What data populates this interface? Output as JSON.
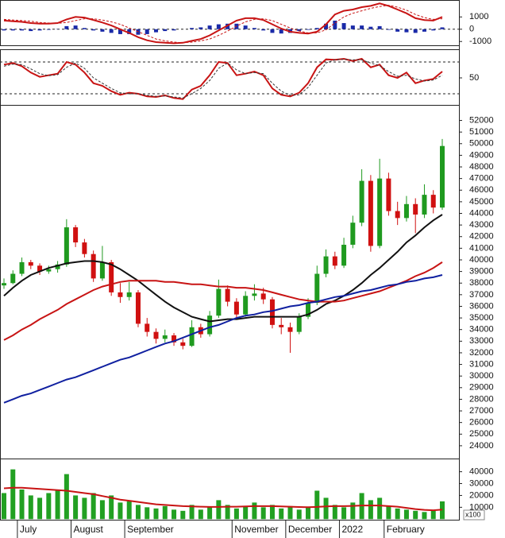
{
  "chart_data": [
    {
      "type": "macd",
      "ylim": [
        -1310,
        2250
      ],
      "yticks": [
        -1000,
        0,
        1000
      ],
      "levels": [
        0
      ],
      "hist_color": "#1a2aa8",
      "hist": [
        -100,
        -100,
        -100,
        -150,
        -100,
        -50,
        20,
        250,
        300,
        100,
        -100,
        -200,
        -300,
        -400,
        -400,
        -450,
        -400,
        -250,
        -150,
        -100,
        0,
        100,
        150,
        300,
        400,
        450,
        450,
        300,
        100,
        -100,
        -300,
        -350,
        -300,
        -150,
        -50,
        100,
        450,
        700,
        500,
        300,
        300,
        200,
        250,
        -50,
        -200,
        -250,
        -300,
        -200,
        -100,
        150
      ],
      "series": [
        {
          "color": "#c81414",
          "dash": false,
          "values": [
            700,
            650,
            600,
            500,
            450,
            450,
            500,
            800,
            1000,
            950,
            750,
            550,
            300,
            0,
            -300,
            -650,
            -900,
            -1050,
            -1100,
            -1150,
            -1100,
            -950,
            -800,
            -500,
            -100,
            300,
            700,
            900,
            900,
            750,
            400,
            50,
            -200,
            -300,
            -350,
            -200,
            400,
            1200,
            1500,
            1600,
            1800,
            1900,
            2100,
            1900,
            1600,
            1300,
            900,
            750,
            700,
            1000
          ]
        },
        {
          "color": "#c81414",
          "dash": true,
          "values": [
            800,
            750,
            700,
            650,
            550,
            500,
            480,
            550,
            700,
            850,
            850,
            750,
            600,
            400,
            100,
            -200,
            -500,
            -800,
            -950,
            -1050,
            -1100,
            -1050,
            -950,
            -800,
            -500,
            -150,
            250,
            600,
            800,
            850,
            700,
            400,
            100,
            -150,
            -300,
            -300,
            -50,
            500,
            1000,
            1300,
            1500,
            1700,
            1850,
            1950,
            1800,
            1550,
            1200,
            950,
            800,
            850
          ]
        }
      ]
    },
    {
      "type": "line",
      "ylim": [
        -1,
        101
      ],
      "yticks": [
        50
      ],
      "levels": [
        20,
        80
      ],
      "series": [
        {
          "color": "#c81414",
          "dash": false,
          "values": [
            75,
            78,
            72,
            60,
            52,
            55,
            58,
            80,
            75,
            60,
            40,
            35,
            25,
            18,
            22,
            20,
            15,
            14,
            17,
            12,
            10,
            28,
            35,
            55,
            80,
            78,
            55,
            58,
            62,
            55,
            30,
            18,
            15,
            22,
            40,
            70,
            85,
            84,
            86,
            82,
            86,
            70,
            75,
            55,
            50,
            60,
            40,
            45,
            48,
            62
          ]
        },
        {
          "color": "#333333",
          "dash": true,
          "values": [
            72,
            76,
            75,
            67,
            58,
            54,
            56,
            70,
            78,
            68,
            50,
            40,
            30,
            22,
            20,
            20,
            17,
            15,
            16,
            14,
            12,
            20,
            30,
            45,
            68,
            78,
            65,
            58,
            60,
            58,
            40,
            25,
            17,
            18,
            32,
            55,
            78,
            84,
            85,
            84,
            84,
            78,
            73,
            62,
            53,
            55,
            48,
            44,
            46,
            55
          ]
        }
      ]
    },
    {
      "type": "candlestick",
      "ylim": [
        22900,
        53200
      ],
      "yticks": [
        24000,
        25000,
        26000,
        27000,
        28000,
        29000,
        30000,
        31000,
        32000,
        33000,
        34000,
        35000,
        36000,
        37000,
        38000,
        39000,
        40000,
        41000,
        42000,
        43000,
        44000,
        45000,
        46000,
        47000,
        48000,
        49000,
        50000,
        51000,
        52000
      ],
      "up_color": "#1f9a1f",
      "down_color": "#d01010",
      "open": [
        37800,
        38000,
        38800,
        39800,
        39500,
        39000,
        39200,
        39600,
        42800,
        41500,
        40500,
        38400,
        39800,
        37200,
        36800,
        37200,
        34500,
        33800,
        33200,
        33500,
        32900,
        32600,
        34200,
        33600,
        35200,
        37500,
        36400,
        35300,
        36900,
        37100,
        36600,
        34400,
        34200,
        33800,
        35100,
        36300,
        38800,
        40300,
        39500,
        41300,
        43200,
        46800,
        41200,
        47000,
        44200,
        43600,
        44800,
        43900,
        45600,
        44500
      ],
      "high": [
        38400,
        39100,
        40200,
        40000,
        39700,
        39500,
        39900,
        43500,
        43000,
        41800,
        40800,
        41200,
        40000,
        38000,
        38100,
        37400,
        35000,
        34100,
        34000,
        33700,
        33200,
        34800,
        34500,
        35600,
        38300,
        37800,
        36700,
        37300,
        37900,
        37600,
        36800,
        35000,
        34600,
        35400,
        36700,
        39500,
        40900,
        40700,
        41900,
        43800,
        47800,
        47300,
        48700,
        47500,
        45000,
        45500,
        45300,
        46500,
        46000,
        50400
      ],
      "low": [
        37500,
        37900,
        38600,
        39200,
        38700,
        38800,
        38900,
        39400,
        41100,
        40200,
        38100,
        38200,
        36900,
        36300,
        36500,
        34200,
        33400,
        32800,
        32900,
        32600,
        32300,
        32500,
        33300,
        33400,
        35000,
        36000,
        35000,
        35100,
        36500,
        36200,
        34100,
        33600,
        32000,
        33600,
        34900,
        36100,
        38500,
        39200,
        39300,
        41000,
        42900,
        40700,
        41000,
        43800,
        43000,
        43300,
        42300,
        43600,
        44000,
        44300
      ],
      "close": [
        38000,
        38800,
        39800,
        39500,
        39000,
        39200,
        39600,
        42800,
        41500,
        40500,
        38400,
        39800,
        37200,
        36800,
        37200,
        34500,
        33800,
        33200,
        33500,
        32900,
        32600,
        34200,
        33600,
        35200,
        37500,
        36400,
        35300,
        36900,
        37100,
        36600,
        34400,
        34200,
        33800,
        35100,
        36300,
        38800,
        40300,
        39500,
        41300,
        43200,
        46800,
        41200,
        47000,
        44200,
        43600,
        44800,
        43900,
        45600,
        44500,
        49800
      ],
      "series": [
        {
          "color": "#111111",
          "dash": false,
          "values": [
            36900,
            37600,
            38200,
            38700,
            39000,
            39300,
            39500,
            39700,
            39800,
            39900,
            39900,
            39800,
            39600,
            39200,
            38700,
            38200,
            37600,
            37000,
            36400,
            35900,
            35500,
            35100,
            34900,
            34700,
            34800,
            34900,
            34900,
            35000,
            35100,
            35100,
            35100,
            35100,
            35100,
            35100,
            35300,
            35700,
            36200,
            36500,
            36900,
            37400,
            38000,
            38700,
            39300,
            40000,
            40700,
            41500,
            42100,
            42800,
            43400,
            43900
          ]
        },
        {
          "color": "#c81414",
          "dash": false,
          "values": [
            33100,
            33500,
            34000,
            34400,
            34900,
            35300,
            35700,
            36200,
            36600,
            37000,
            37400,
            37700,
            37900,
            38100,
            38200,
            38200,
            38200,
            38200,
            38100,
            38100,
            38000,
            37900,
            37900,
            37800,
            37700,
            37700,
            37600,
            37600,
            37500,
            37400,
            37200,
            37000,
            36800,
            36600,
            36500,
            36400,
            36400,
            36400,
            36500,
            36700,
            36900,
            37100,
            37300,
            37600,
            37900,
            38200,
            38600,
            38900,
            39300,
            39800
          ]
        },
        {
          "color": "#1020a0",
          "dash": false,
          "values": [
            27700,
            28000,
            28300,
            28500,
            28800,
            29100,
            29400,
            29700,
            29900,
            30200,
            30500,
            30800,
            31100,
            31400,
            31600,
            31900,
            32200,
            32500,
            32800,
            33000,
            33300,
            33600,
            33900,
            34200,
            34400,
            34700,
            35000,
            35200,
            35300,
            35500,
            35600,
            35800,
            36000,
            36100,
            36300,
            36400,
            36600,
            36800,
            36900,
            37100,
            37300,
            37400,
            37600,
            37800,
            37900,
            38100,
            38200,
            38400,
            38500,
            38700
          ]
        }
      ]
    },
    {
      "type": "bar",
      "ylim": [
        -500,
        49800
      ],
      "yticks": [
        10000,
        20000,
        30000,
        40000
      ],
      "unit_label": "x100",
      "color": "#22a022",
      "categories": [
        null,
        null,
        "July",
        null,
        null,
        null,
        null,
        null,
        "August",
        null,
        null,
        null,
        null,
        null,
        "September",
        null,
        null,
        null,
        null,
        null,
        null,
        null,
        null,
        null,
        null,
        null,
        "November",
        null,
        null,
        null,
        null,
        null,
        "December",
        null,
        null,
        null,
        null,
        null,
        "2022",
        null,
        null,
        null,
        null,
        "February",
        null,
        null,
        null,
        null,
        null,
        null
      ],
      "values": [
        22000,
        42000,
        25000,
        20000,
        18000,
        22000,
        24000,
        38000,
        20000,
        18000,
        22000,
        16000,
        20000,
        14000,
        15000,
        12000,
        10000,
        9000,
        11000,
        8000,
        7000,
        12000,
        8000,
        10000,
        16000,
        12000,
        9000,
        11000,
        14000,
        10000,
        12000,
        9000,
        11000,
        8000,
        10000,
        24000,
        18000,
        12000,
        10000,
        14000,
        22000,
        16000,
        18000,
        11000,
        9000,
        8000,
        7000,
        6000,
        7000,
        15000
      ],
      "series": [
        {
          "color": "#c81414",
          "dash": false,
          "values": [
            26000,
            26500,
            26500,
            26000,
            25500,
            25000,
            24500,
            24000,
            23000,
            22000,
            21000,
            19500,
            18000,
            16500,
            15500,
            14500,
            13500,
            12500,
            12000,
            11500,
            11000,
            10800,
            10500,
            10300,
            10300,
            10500,
            10500,
            10800,
            11000,
            11000,
            11000,
            10800,
            10500,
            10200,
            10000,
            10300,
            10800,
            11000,
            11000,
            11200,
            11500,
            11500,
            11500,
            11000,
            10500,
            9500,
            8500,
            7800,
            7500,
            8000
          ]
        }
      ]
    }
  ]
}
